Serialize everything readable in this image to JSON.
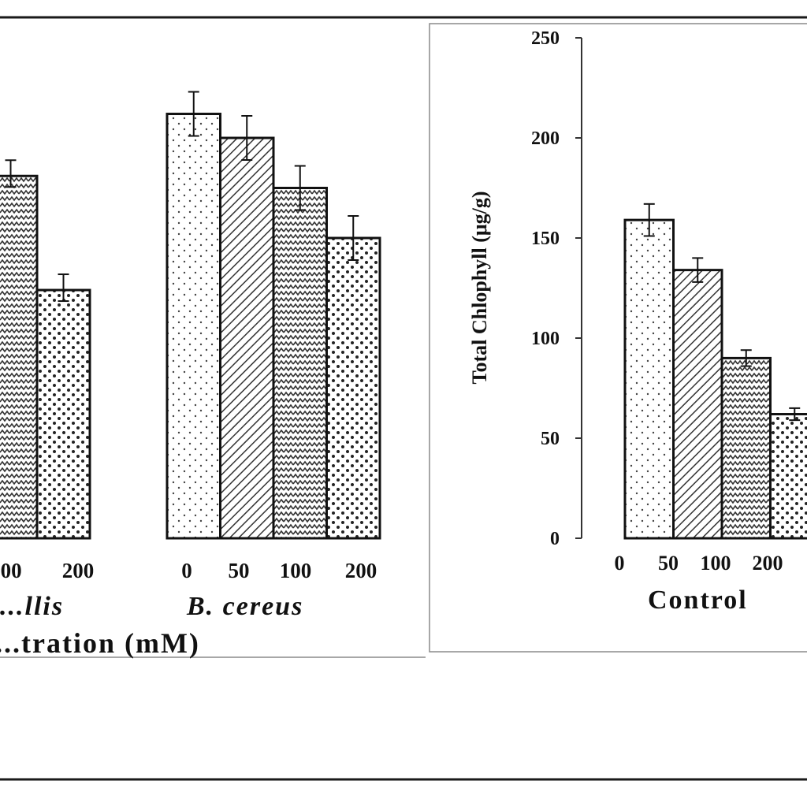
{
  "colors": {
    "ink": "#111111",
    "frame": "#1a1a1a",
    "panel_border": "#8a8a8a",
    "background": "#ffffff"
  },
  "chart_data": [
    {
      "type": "bar",
      "panel": "left",
      "categories": [
        "0",
        "50",
        "100",
        "200"
      ],
      "x_group_labels": [
        "...llis",
        "B. cereus"
      ],
      "xlabel": "...tration (mM)",
      "groups": [
        {
          "label": "...llis",
          "tick_labels": [
            "...00",
            "200"
          ],
          "values": [
            181,
            124
          ]
        },
        {
          "label": "B. cereus",
          "tick_labels": [
            "0",
            "50",
            "100",
            "200"
          ],
          "values": [
            212,
            200,
            175,
            150
          ]
        }
      ]
    },
    {
      "type": "bar",
      "panel": "right",
      "ylabel": "Total Chlophyll (μg/g)",
      "ylim": [
        0,
        250
      ],
      "yticks": [
        "0",
        "50",
        "100",
        "150",
        "200",
        "250"
      ],
      "group_label": "Control",
      "categories": [
        "0",
        "50",
        "100",
        "200"
      ],
      "values": [
        159,
        134,
        90,
        62
      ],
      "errors": [
        8,
        6,
        4,
        3
      ],
      "grid": false
    }
  ]
}
